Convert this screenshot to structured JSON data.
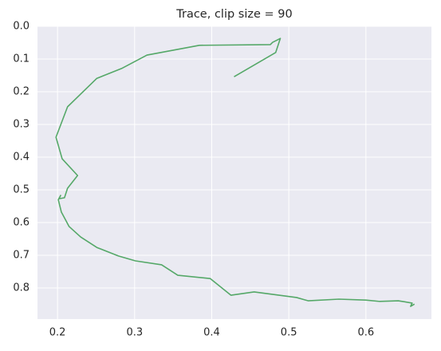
{
  "chart_data": {
    "type": "line",
    "title": "Trace, clip size = 90",
    "x": [
      0.429,
      0.483,
      0.489,
      0.479,
      0.476,
      0.384,
      0.316,
      0.283,
      0.251,
      0.213,
      0.198,
      0.206,
      0.226,
      0.213,
      0.209,
      0.202,
      0.204,
      0.201,
      0.205,
      0.21,
      0.215,
      0.23,
      0.251,
      0.279,
      0.301,
      0.335,
      0.356,
      0.398,
      0.425,
      0.455,
      0.51,
      0.525,
      0.565,
      0.6,
      0.618,
      0.642,
      0.66,
      0.658,
      0.663
    ],
    "series": [
      {
        "color": "#55a868",
        "values": [
          0.154,
          0.08,
          0.037,
          0.049,
          0.056,
          0.058,
          0.088,
          0.129,
          0.159,
          0.246,
          0.339,
          0.405,
          0.456,
          0.495,
          0.524,
          0.527,
          0.517,
          0.53,
          0.568,
          0.59,
          0.612,
          0.644,
          0.676,
          0.702,
          0.717,
          0.729,
          0.761,
          0.771,
          0.822,
          0.812,
          0.829,
          0.839,
          0.834,
          0.837,
          0.841,
          0.839,
          0.846,
          0.856,
          0.849
        ]
      }
    ],
    "xlim": [
      0.174,
      0.685
    ],
    "xticks": [
      0.2,
      0.3,
      0.4,
      0.5,
      0.6
    ],
    "ylim": [
      0.895,
      0.0
    ],
    "yticks": [
      {
        "value": 0.0,
        "label": "0.0"
      },
      0.1,
      0.2,
      0.3,
      0.4,
      0.5,
      0.6,
      0.7,
      0.8
    ],
    "grid": true
  }
}
